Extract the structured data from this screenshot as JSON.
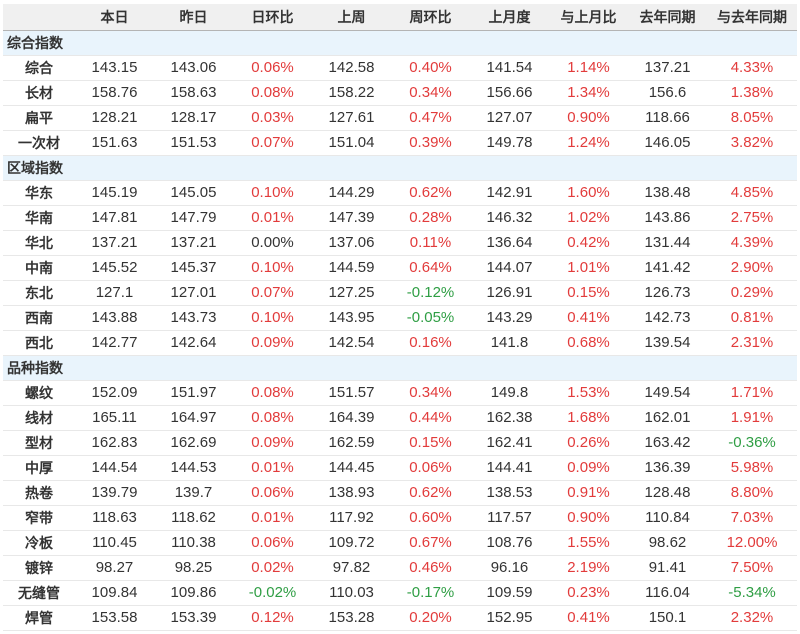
{
  "chart_data": {
    "type": "table",
    "title": "",
    "columns": [
      "本日",
      "昨日",
      "日环比",
      "上周",
      "周环比",
      "上月度",
      "与上月比",
      "去年同期",
      "与去年同期"
    ],
    "colors": {
      "positive_pct": "#e23b3b",
      "negative_pct": "#2f9e44",
      "neutral_pct": "#333333",
      "header_bg": "#f0f0f0",
      "section_bg": "#e9f4fc",
      "row_border": "#e8e8e8",
      "header_border": "#b4b4b4",
      "text": "#333333"
    },
    "sections": [
      {
        "title": "综合指数",
        "rows": [
          {
            "label": "综合",
            "values": [
              "143.15",
              "143.06",
              "0.06%",
              "142.58",
              "0.40%",
              "141.54",
              "1.14%",
              "137.21",
              "4.33%"
            ]
          },
          {
            "label": "长材",
            "values": [
              "158.76",
              "158.63",
              "0.08%",
              "158.22",
              "0.34%",
              "156.66",
              "1.34%",
              "156.6",
              "1.38%"
            ]
          },
          {
            "label": "扁平",
            "values": [
              "128.21",
              "128.17",
              "0.03%",
              "127.61",
              "0.47%",
              "127.07",
              "0.90%",
              "118.66",
              "8.05%"
            ]
          },
          {
            "label": "一次材",
            "values": [
              "151.63",
              "151.53",
              "0.07%",
              "151.04",
              "0.39%",
              "149.78",
              "1.24%",
              "146.05",
              "3.82%"
            ]
          }
        ]
      },
      {
        "title": "区域指数",
        "rows": [
          {
            "label": "华东",
            "values": [
              "145.19",
              "145.05",
              "0.10%",
              "144.29",
              "0.62%",
              "142.91",
              "1.60%",
              "138.48",
              "4.85%"
            ]
          },
          {
            "label": "华南",
            "values": [
              "147.81",
              "147.79",
              "0.01%",
              "147.39",
              "0.28%",
              "146.32",
              "1.02%",
              "143.86",
              "2.75%"
            ]
          },
          {
            "label": "华北",
            "values": [
              "137.21",
              "137.21",
              "0.00%",
              "137.06",
              "0.11%",
              "136.64",
              "0.42%",
              "131.44",
              "4.39%"
            ]
          },
          {
            "label": "中南",
            "values": [
              "145.52",
              "145.37",
              "0.10%",
              "144.59",
              "0.64%",
              "144.07",
              "1.01%",
              "141.42",
              "2.90%"
            ]
          },
          {
            "label": "东北",
            "values": [
              "127.1",
              "127.01",
              "0.07%",
              "127.25",
              "-0.12%",
              "126.91",
              "0.15%",
              "126.73",
              "0.29%"
            ]
          },
          {
            "label": "西南",
            "values": [
              "143.88",
              "143.73",
              "0.10%",
              "143.95",
              "-0.05%",
              "143.29",
              "0.41%",
              "142.73",
              "0.81%"
            ]
          },
          {
            "label": "西北",
            "values": [
              "142.77",
              "142.64",
              "0.09%",
              "142.54",
              "0.16%",
              "141.8",
              "0.68%",
              "139.54",
              "2.31%"
            ]
          }
        ]
      },
      {
        "title": "品种指数",
        "rows": [
          {
            "label": "螺纹",
            "values": [
              "152.09",
              "151.97",
              "0.08%",
              "151.57",
              "0.34%",
              "149.8",
              "1.53%",
              "149.54",
              "1.71%"
            ]
          },
          {
            "label": "线材",
            "values": [
              "165.11",
              "164.97",
              "0.08%",
              "164.39",
              "0.44%",
              "162.38",
              "1.68%",
              "162.01",
              "1.91%"
            ]
          },
          {
            "label": "型材",
            "values": [
              "162.83",
              "162.69",
              "0.09%",
              "162.59",
              "0.15%",
              "162.41",
              "0.26%",
              "163.42",
              "-0.36%"
            ]
          },
          {
            "label": "中厚",
            "values": [
              "144.54",
              "144.53",
              "0.01%",
              "144.45",
              "0.06%",
              "144.41",
              "0.09%",
              "136.39",
              "5.98%"
            ]
          },
          {
            "label": "热卷",
            "values": [
              "139.79",
              "139.7",
              "0.06%",
              "138.93",
              "0.62%",
              "138.53",
              "0.91%",
              "128.48",
              "8.80%"
            ]
          },
          {
            "label": "窄带",
            "values": [
              "118.63",
              "118.62",
              "0.01%",
              "117.92",
              "0.60%",
              "117.57",
              "0.90%",
              "110.84",
              "7.03%"
            ]
          },
          {
            "label": "冷板",
            "values": [
              "110.45",
              "110.38",
              "0.06%",
              "109.72",
              "0.67%",
              "108.76",
              "1.55%",
              "98.62",
              "12.00%"
            ]
          },
          {
            "label": "镀锌",
            "values": [
              "98.27",
              "98.25",
              "0.02%",
              "97.82",
              "0.46%",
              "96.16",
              "2.19%",
              "91.41",
              "7.50%"
            ]
          },
          {
            "label": "无缝管",
            "values": [
              "109.84",
              "109.86",
              "-0.02%",
              "110.03",
              "-0.17%",
              "109.59",
              "0.23%",
              "116.04",
              "-5.34%"
            ]
          },
          {
            "label": "焊管",
            "values": [
              "153.58",
              "153.39",
              "0.12%",
              "153.28",
              "0.20%",
              "152.95",
              "0.41%",
              "150.1",
              "2.32%"
            ]
          }
        ]
      }
    ]
  }
}
